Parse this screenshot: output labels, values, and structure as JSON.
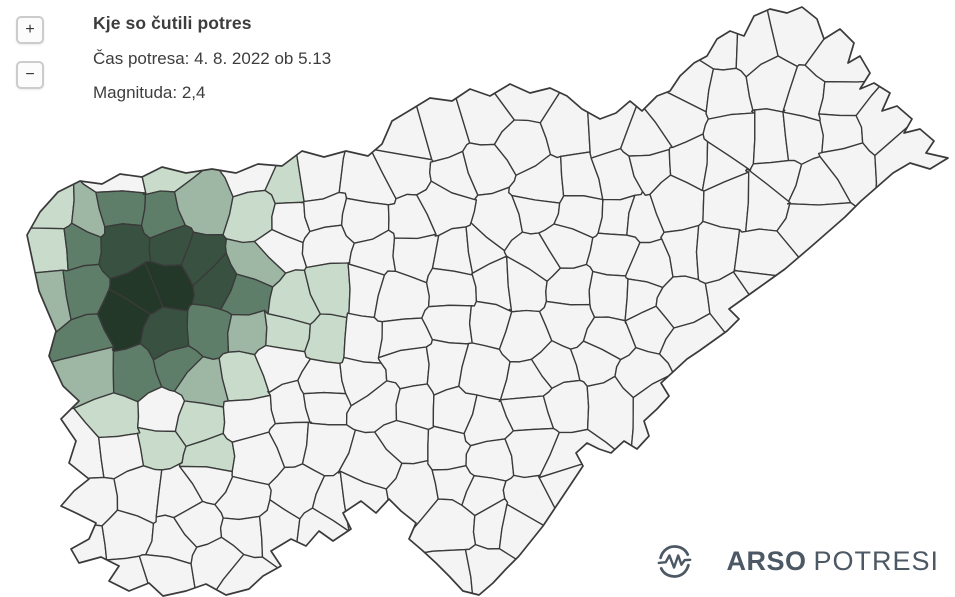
{
  "header": {
    "title": "Kje so čutili potres",
    "time": "Čas potresa: 4. 8. 2022 ob 5.13",
    "magnitude": "Magnituda: 2,4"
  },
  "zoom": {
    "in_label": "+",
    "out_label": "−"
  },
  "logo": {
    "icon": "seismogram-circle-icon",
    "brand_bold": "ARSO",
    "brand_light": "POTRESI",
    "color": "#4c5863"
  },
  "map": {
    "type": "choropleth",
    "region": "Slovenia, municipalities",
    "semantic": "Municipalities shaded green where the earthquake was felt; darkest cluster (epicentre area) in north-west Slovenia",
    "background": "#ffffff",
    "base_fill": "#f4f4f4",
    "border_color": "#3a3a3a",
    "intensity_colors": [
      "#c9dccb",
      "#9eb7a4",
      "#5f7e69",
      "#395141",
      "#243829"
    ]
  },
  "ui_colors": {
    "button_bg": "#fcfcfc",
    "button_border": "#cccccc",
    "text": "#3d3d3d"
  }
}
